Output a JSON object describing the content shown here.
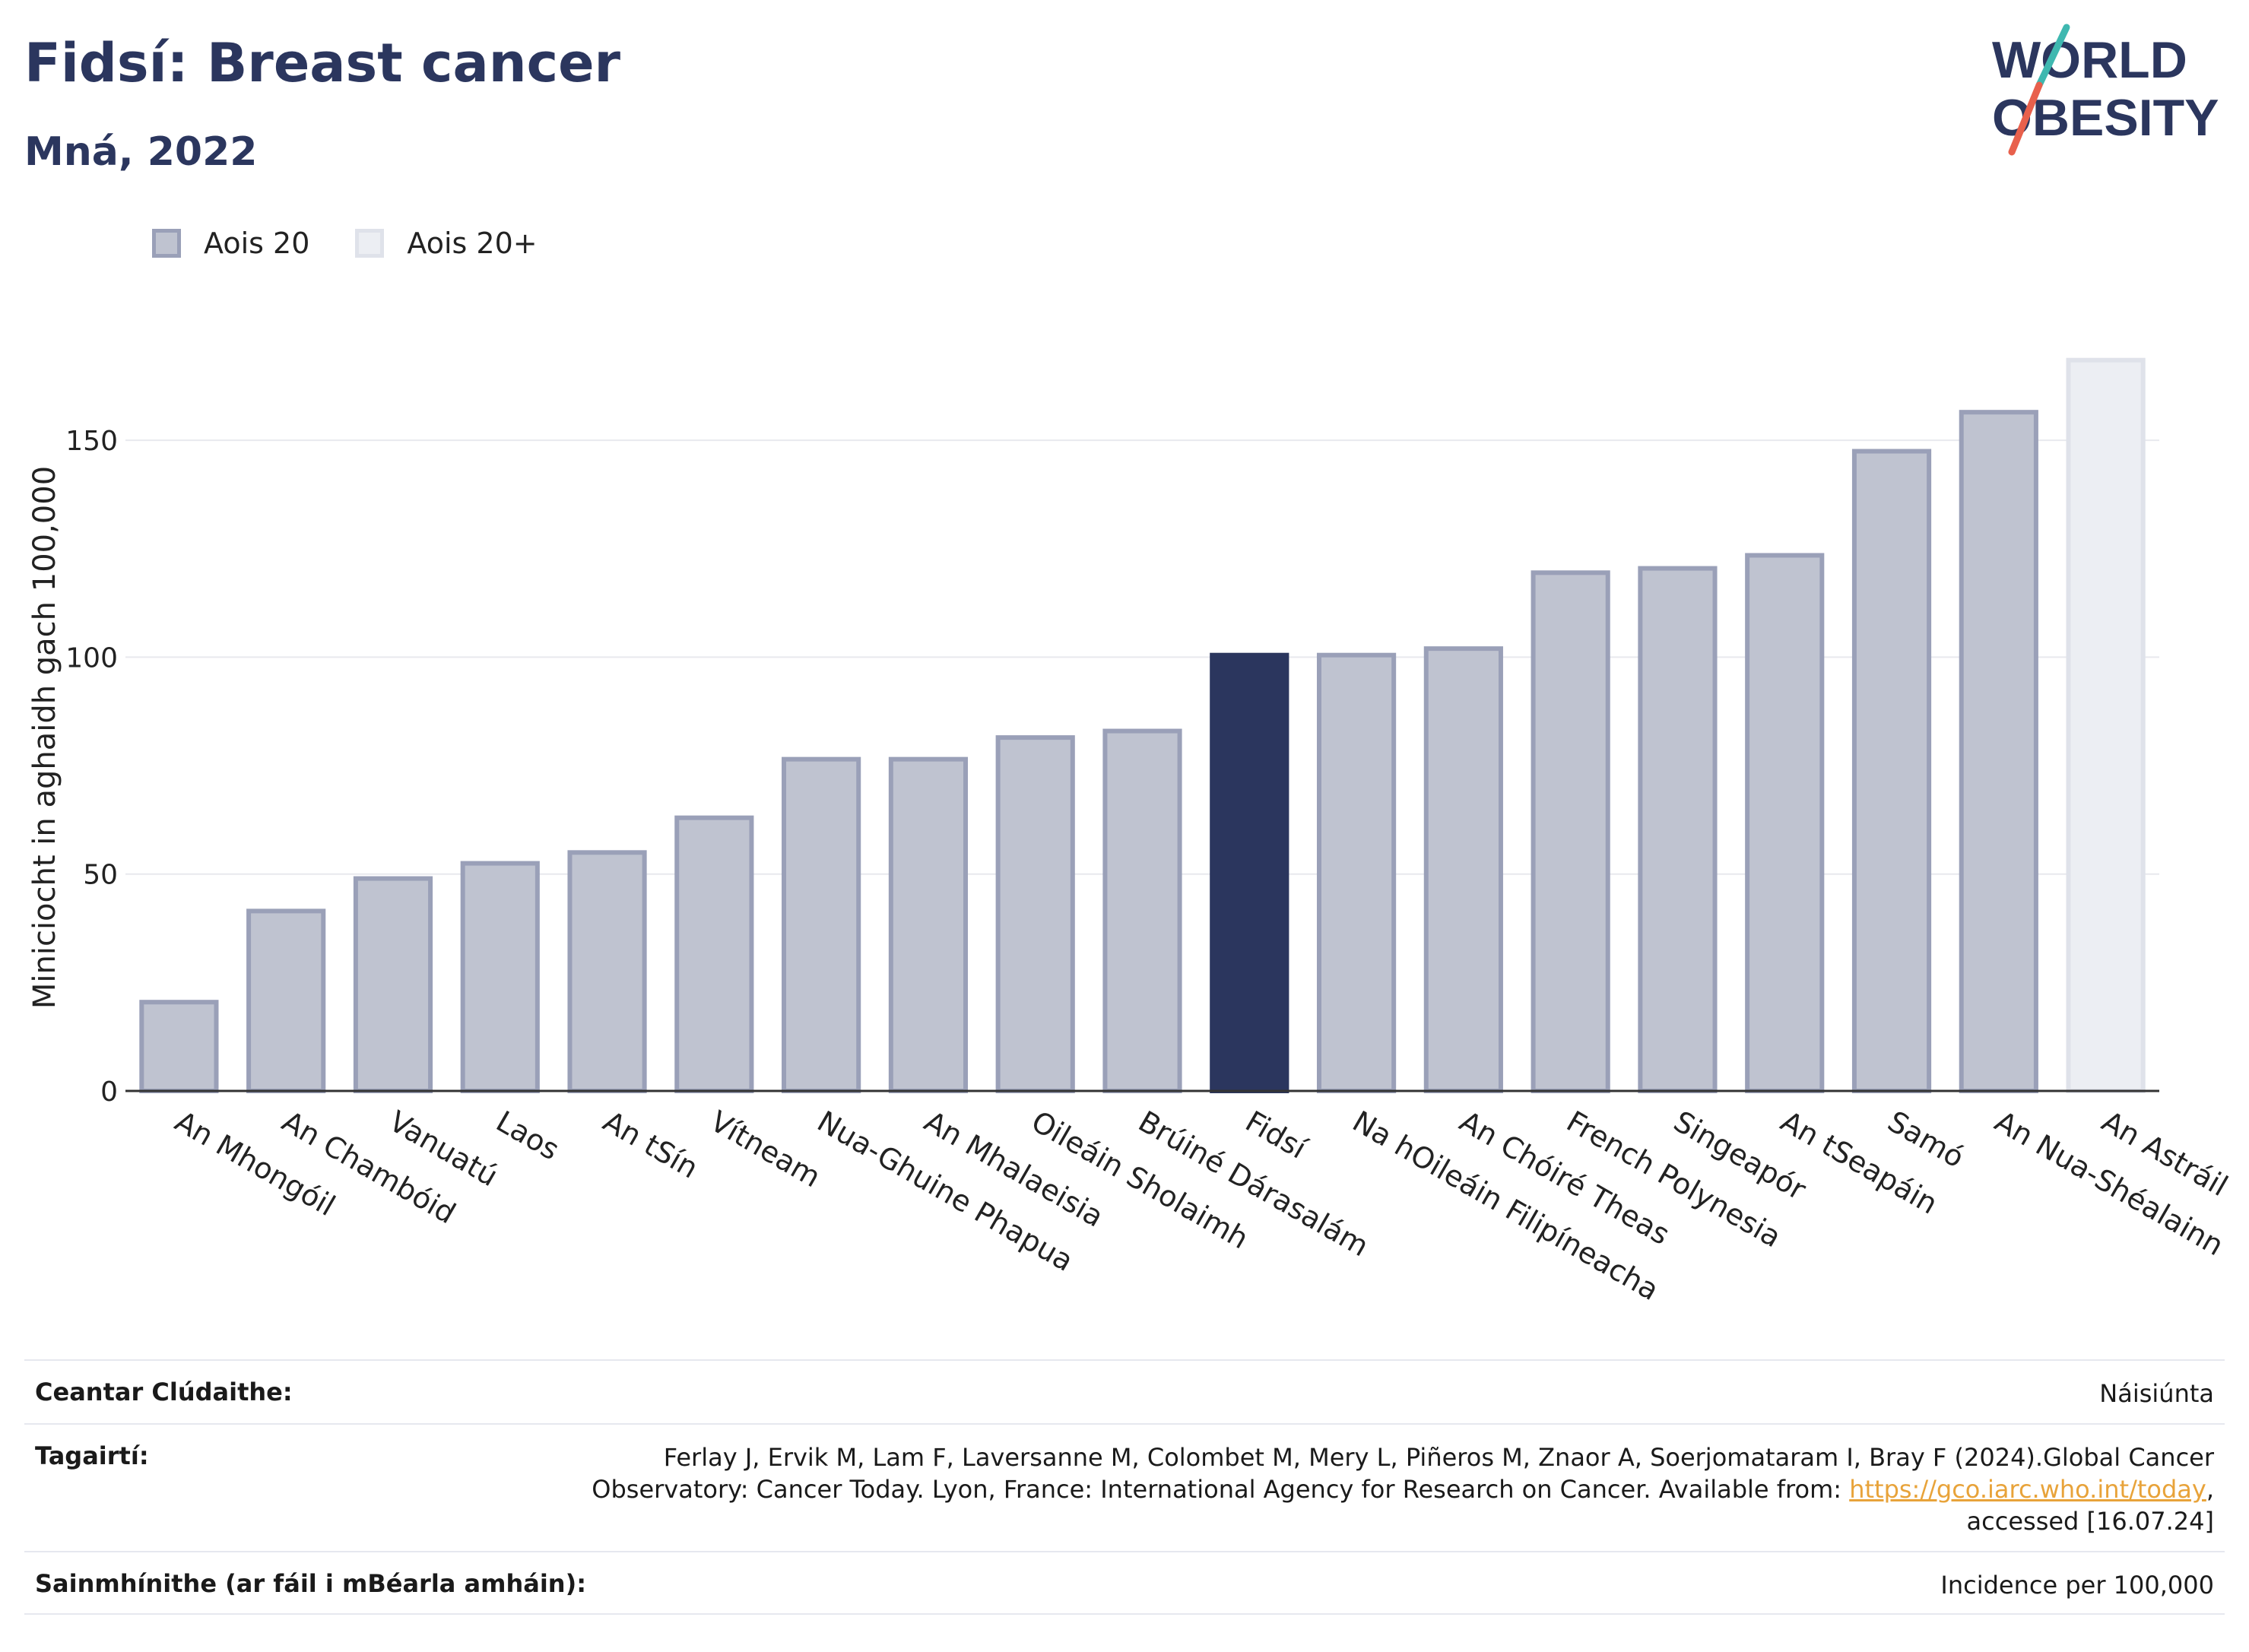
{
  "header": {
    "title": "Fidsí: Breast cancer",
    "subtitle": "Mná, 2022"
  },
  "logo": {
    "line1": "WORLD",
    "line2": "OBESITY"
  },
  "colors": {
    "highlight": "#2b365e",
    "bar_fill": "#bfc3d0",
    "bar_border": "#9aa0b8",
    "aggregate_fill": "#eceef3",
    "aggregate_border": "#dfe2ea",
    "logo_teal": "#3fb8b0",
    "logo_coral": "#e8604c"
  },
  "legend": [
    {
      "label": "Aois 20",
      "fill": "#bfc3d0",
      "border": "#9aa0b8"
    },
    {
      "label": "Aois 20+",
      "fill": "#eceef3",
      "border": "#dfe2ea"
    }
  ],
  "chart_data": {
    "type": "bar",
    "ylabel": "Miniciocht in aghaidh gach 100,000",
    "ylim": [
      0,
      175
    ],
    "yticks": [
      0,
      50,
      100,
      150
    ],
    "grid": true,
    "legend_position": "top-left",
    "categories": [
      "An Mhongóil",
      "An Chambóid",
      "Vanuatú",
      "Laos",
      "An tSín",
      "Vítneam",
      "Nua-Ghuine Phapua",
      "An Mhalaeisia",
      "Oileáin Sholaimh",
      "Brúiné Dárasalám",
      "Fidsí",
      "Na hOileáin Filipíneacha",
      "An Chóiré Theas",
      "French Polynesia",
      "Singeapór",
      "An tSeapáin",
      "Samó",
      "An Nua-Shéalainn",
      "An Astráil"
    ],
    "values": [
      21,
      42,
      49.5,
      53,
      55.5,
      63.5,
      77,
      77,
      82,
      83.5,
      101,
      101,
      102.5,
      120,
      121,
      124,
      148,
      157,
      169
    ],
    "groups": [
      "Aois 20",
      "Aois 20",
      "Aois 20",
      "Aois 20",
      "Aois 20",
      "Aois 20",
      "Aois 20",
      "Aois 20",
      "Aois 20",
      "Aois 20",
      "Aois 20",
      "Aois 20",
      "Aois 20",
      "Aois 20",
      "Aois 20",
      "Aois 20",
      "Aois 20",
      "Aois 20",
      "Aois 20+"
    ],
    "highlight": "Fidsí"
  },
  "meta": {
    "coverage_label": "Ceantar Clúdaithe:",
    "coverage_value": "Náisiúnta",
    "references_label": "Tagairtí:",
    "references_text_1": "Ferlay J, Ervik M, Lam F, Laversanne M, Colombet M, Mery L, Piñeros M, Znaor A, Soerjomataram I, Bray F (2024).Global Cancer Observatory: Cancer Today. Lyon, France: International Agency for Research on Cancer. Available from: ",
    "references_link": "https://gco.iarc.who.int/today",
    "references_text_2": ", accessed [16.07.24]",
    "definitions_label": "Sainmhínithe (ar fáil i mBéarla amháin):",
    "definitions_value": "Incidence per 100,000"
  }
}
